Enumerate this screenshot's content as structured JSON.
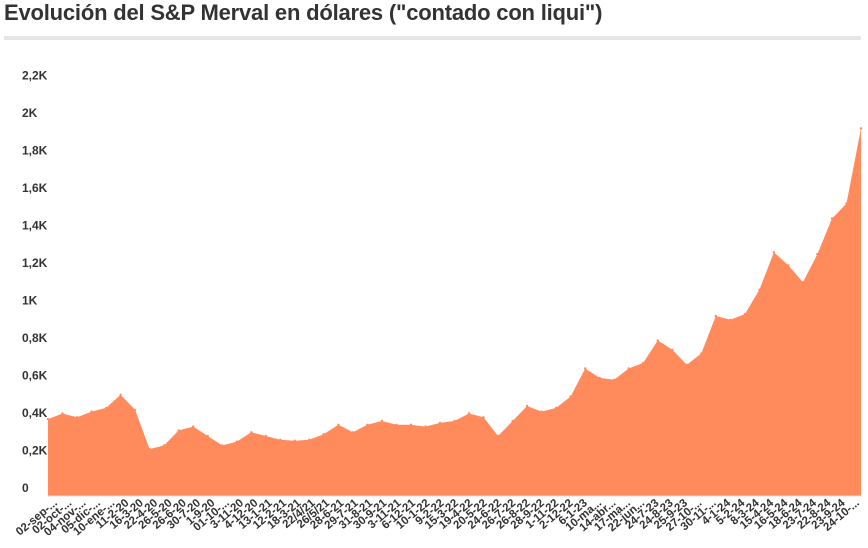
{
  "title": "Evolución del S&P Merval en dólares (\"contado con liqui\")",
  "chart_data": {
    "type": "area",
    "title": "Evolución del S&P Merval en dólares (\"contado con liqui\")",
    "xlabel": "",
    "ylabel": "",
    "ylim": [
      0,
      2200
    ],
    "yticks": [
      {
        "value": 0,
        "label": "0"
      },
      {
        "value": 200,
        "label": "0,2K"
      },
      {
        "value": 400,
        "label": "0,4K"
      },
      {
        "value": 600,
        "label": "0,6K"
      },
      {
        "value": 800,
        "label": "0,8K"
      },
      {
        "value": 1000,
        "label": "1K"
      },
      {
        "value": 1200,
        "label": "1,2K"
      },
      {
        "value": 1400,
        "label": "1,4K"
      },
      {
        "value": 1600,
        "label": "1,6K"
      },
      {
        "value": 1800,
        "label": "1,8K"
      },
      {
        "value": 2000,
        "label": "2K"
      },
      {
        "value": 2200,
        "label": "2,2K"
      }
    ],
    "x_tick_labels": [
      "02-sep-...",
      "02-oct-...",
      "04-nov-...",
      "05-dic-...",
      "10-ene-...",
      "11-2-20",
      "16-3-20",
      "22-4-20",
      "26-5-20",
      "26-6-20",
      "30-7-20",
      "1-9-20",
      "01-10-...",
      "3-11-20",
      "4-12-20",
      "13-1-21",
      "12-2-21",
      "18-3-21",
      "22/4/21",
      "26/5/21",
      "28-6-21",
      "29-7-21",
      "31-8-21",
      "30-9-21",
      "3-11-21",
      "6-12-21",
      "10-1-22",
      "9-2-22",
      "15-3-22",
      "19-4-22",
      "20-5-22",
      "24-6-22",
      "26-7-22",
      "26-8-22",
      "28-9-22",
      "1-11-22",
      "2-12-22",
      "6-1-23",
      "10-ma...",
      "14-abr...",
      "17-ma...",
      "22-jun...",
      "24-7-23",
      "24-8-23",
      "25-9-23",
      "27-10-...",
      "30-11-...",
      "4-1-24",
      "5-2-24",
      "8-3-24",
      "15-4-24",
      "16-5-24",
      "18-6-24",
      "23-7-24",
      "22-8-24",
      "23-9-24",
      "24-10-..."
    ],
    "series": [
      {
        "name": "",
        "color": "#ff8a5c",
        "x": [
          "02-sep-...",
          "02-oct-...",
          "04-nov-...",
          "05-dic-...",
          "10-ene-...",
          "11-2-20",
          "16-3-20",
          "22-4-20",
          "26-5-20",
          "26-6-20",
          "30-7-20",
          "1-9-20",
          "01-10-...",
          "3-11-20",
          "4-12-20",
          "13-1-21",
          "12-2-21",
          "18-3-21",
          "22/4/21",
          "26/5/21",
          "28-6-21",
          "29-7-21",
          "31-8-21",
          "30-9-21",
          "3-11-21",
          "6-12-21",
          "10-1-22",
          "9-2-22",
          "15-3-22",
          "19-4-22",
          "20-5-22",
          "24-6-22",
          "26-7-22",
          "26-8-22",
          "28-9-22",
          "1-11-22",
          "2-12-22",
          "6-1-23",
          "10-ma...",
          "14-abr...",
          "17-ma...",
          "22-jun...",
          "24-7-23",
          "24-8-23",
          "25-9-23",
          "27-10-...",
          "30-11-...",
          "4-1-24",
          "5-2-24",
          "8-3-24",
          "15-4-24",
          "16-5-24",
          "18-6-24",
          "23-7-24",
          "22-8-24",
          "23-9-24",
          "24-10-..."
        ],
        "values": [
          410,
          440,
          420,
          450,
          470,
          540,
          460,
          250,
          270,
          350,
          370,
          320,
          270,
          290,
          340,
          320,
          300,
          295,
          300,
          330,
          380,
          340,
          380,
          400,
          380,
          380,
          370,
          390,
          400,
          440,
          420,
          320,
          400,
          480,
          450,
          470,
          530,
          680,
          630,
          620,
          680,
          710,
          830,
          780,
          700,
          760,
          960,
          940,
          970,
          1100,
          1300,
          1230,
          1140,
          1290,
          1480,
          1560,
          1960
        ]
      }
    ]
  }
}
